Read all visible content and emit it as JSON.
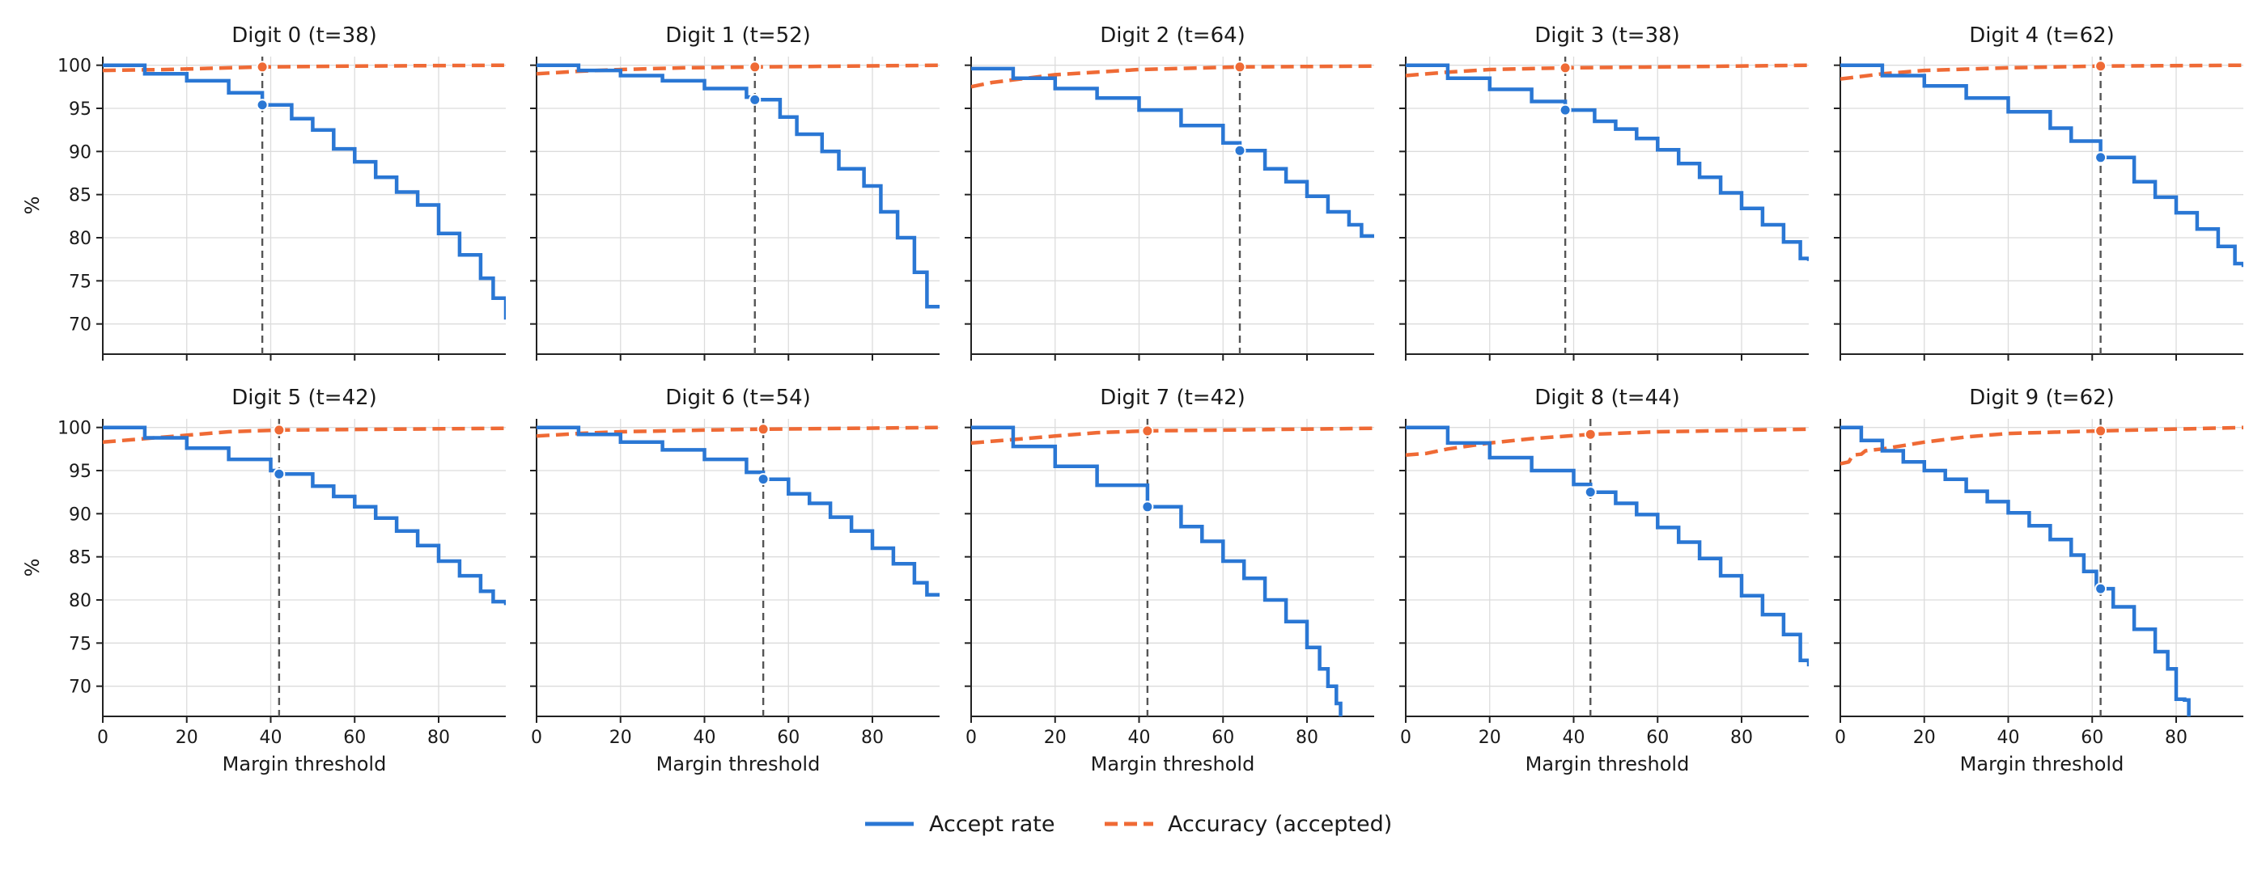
{
  "chart_data": {
    "type": "line",
    "layout": "2x5 small multiples",
    "xlabel": "Margin threshold",
    "ylabel": "%",
    "xlim": [
      0,
      96
    ],
    "ylim": [
      66.5,
      101
    ],
    "xticks": [
      0,
      20,
      40,
      60,
      80
    ],
    "yticks": [
      70,
      75,
      80,
      85,
      90,
      95,
      100
    ],
    "grid": true,
    "legend": {
      "placement": "bottom-center",
      "entries": [
        {
          "name": "Accept rate",
          "color": "#2a77d4",
          "style": "solid"
        },
        {
          "name": "Accuracy (accepted)",
          "color": "#ef6a35",
          "style": "dashed"
        }
      ]
    },
    "threshold_line_color": "#555555",
    "panels": [
      {
        "title": "Digit 0  (t=38)",
        "threshold": 38,
        "accept_marker": 95.4,
        "accuracy_marker": 99.8,
        "accept": [
          [
            0,
            100
          ],
          [
            10,
            99
          ],
          [
            20,
            98.2
          ],
          [
            30,
            96.8
          ],
          [
            38,
            95.4
          ],
          [
            45,
            93.8
          ],
          [
            50,
            92.5
          ],
          [
            55,
            90.3
          ],
          [
            60,
            88.8
          ],
          [
            65,
            87
          ],
          [
            70,
            85.3
          ],
          [
            75,
            83.8
          ],
          [
            80,
            80.5
          ],
          [
            85,
            78
          ],
          [
            90,
            75.3
          ],
          [
            93,
            73
          ],
          [
            96,
            70.5
          ]
        ],
        "accuracy": [
          [
            0,
            99.4
          ],
          [
            15,
            99.5
          ],
          [
            30,
            99.7
          ],
          [
            38,
            99.8
          ],
          [
            60,
            99.9
          ],
          [
            96,
            100
          ]
        ]
      },
      {
        "title": "Digit 1  (t=52)",
        "threshold": 52,
        "accept": [
          [
            0,
            100
          ],
          [
            10,
            99.4
          ],
          [
            20,
            98.8
          ],
          [
            30,
            98.2
          ],
          [
            40,
            97.3
          ],
          [
            50,
            96.3
          ],
          [
            52,
            96
          ],
          [
            58,
            94
          ],
          [
            62,
            92
          ],
          [
            68,
            90
          ],
          [
            72,
            88
          ],
          [
            78,
            86
          ],
          [
            82,
            83
          ],
          [
            86,
            80
          ],
          [
            90,
            76
          ],
          [
            93,
            72
          ],
          [
            96,
            71.8
          ]
        ],
        "accept_marker": 96,
        "accuracy_marker": 99.8,
        "accuracy": [
          [
            0,
            99
          ],
          [
            10,
            99.3
          ],
          [
            20,
            99.5
          ],
          [
            35,
            99.7
          ],
          [
            52,
            99.8
          ],
          [
            96,
            100
          ]
        ]
      },
      {
        "title": "Digit 2  (t=64)",
        "threshold": 64,
        "accept": [
          [
            0,
            99.6
          ],
          [
            10,
            98.5
          ],
          [
            20,
            97.3
          ],
          [
            30,
            96.2
          ],
          [
            40,
            94.8
          ],
          [
            50,
            93
          ],
          [
            60,
            91
          ],
          [
            64,
            90.1
          ],
          [
            70,
            88
          ],
          [
            75,
            86.5
          ],
          [
            80,
            84.8
          ],
          [
            85,
            83
          ],
          [
            90,
            81.5
          ],
          [
            93,
            80.2
          ],
          [
            96,
            80
          ]
        ],
        "accept_marker": 90.1,
        "accuracy_marker": 99.8,
        "accuracy": [
          [
            0,
            97.5
          ],
          [
            5,
            98
          ],
          [
            10,
            98.3
          ],
          [
            20,
            98.9
          ],
          [
            30,
            99.2
          ],
          [
            40,
            99.5
          ],
          [
            64,
            99.8
          ],
          [
            96,
            99.9
          ]
        ]
      },
      {
        "title": "Digit 3  (t=38)",
        "threshold": 38,
        "accept": [
          [
            0,
            100
          ],
          [
            10,
            98.5
          ],
          [
            20,
            97.2
          ],
          [
            30,
            95.8
          ],
          [
            38,
            94.8
          ],
          [
            45,
            93.5
          ],
          [
            50,
            92.6
          ],
          [
            55,
            91.5
          ],
          [
            60,
            90.2
          ],
          [
            65,
            88.6
          ],
          [
            70,
            87
          ],
          [
            75,
            85.2
          ],
          [
            80,
            83.4
          ],
          [
            85,
            81.5
          ],
          [
            90,
            79.5
          ],
          [
            94,
            77.6
          ],
          [
            96,
            77.3
          ]
        ],
        "accept_marker": 94.8,
        "accuracy_marker": 99.7,
        "accuracy": [
          [
            0,
            98.8
          ],
          [
            10,
            99.2
          ],
          [
            20,
            99.5
          ],
          [
            38,
            99.7
          ],
          [
            60,
            99.8
          ],
          [
            96,
            100
          ]
        ]
      },
      {
        "title": "Digit 4  (t=62)",
        "threshold": 62,
        "accept": [
          [
            0,
            100
          ],
          [
            10,
            98.8
          ],
          [
            20,
            97.6
          ],
          [
            30,
            96.2
          ],
          [
            40,
            94.6
          ],
          [
            50,
            92.7
          ],
          [
            55,
            91.2
          ],
          [
            62,
            89.3
          ],
          [
            70,
            86.5
          ],
          [
            75,
            84.7
          ],
          [
            80,
            82.9
          ],
          [
            85,
            81
          ],
          [
            90,
            79
          ],
          [
            94,
            77
          ],
          [
            96,
            76.6
          ]
        ],
        "accept_marker": 89.3,
        "accuracy_marker": 99.9,
        "accuracy": [
          [
            0,
            98.4
          ],
          [
            10,
            99
          ],
          [
            20,
            99.4
          ],
          [
            40,
            99.7
          ],
          [
            62,
            99.9
          ],
          [
            96,
            100
          ]
        ]
      },
      {
        "title": "Digit 5  (t=42)",
        "threshold": 42,
        "accept": [
          [
            0,
            100
          ],
          [
            10,
            98.8
          ],
          [
            20,
            97.6
          ],
          [
            30,
            96.3
          ],
          [
            40,
            95
          ],
          [
            42,
            94.6
          ],
          [
            50,
            93.2
          ],
          [
            55,
            92
          ],
          [
            60,
            90.8
          ],
          [
            65,
            89.5
          ],
          [
            70,
            88
          ],
          [
            75,
            86.3
          ],
          [
            80,
            84.5
          ],
          [
            85,
            82.8
          ],
          [
            90,
            81
          ],
          [
            93,
            79.8
          ],
          [
            96,
            79.4
          ]
        ],
        "accept_marker": 94.6,
        "accuracy_marker": 99.7,
        "accuracy": [
          [
            0,
            98.3
          ],
          [
            10,
            98.7
          ],
          [
            20,
            99.1
          ],
          [
            30,
            99.5
          ],
          [
            42,
            99.7
          ],
          [
            96,
            99.9
          ]
        ]
      },
      {
        "title": "Digit 6  (t=54)",
        "threshold": 54,
        "accept": [
          [
            0,
            100
          ],
          [
            10,
            99.2
          ],
          [
            20,
            98.3
          ],
          [
            30,
            97.4
          ],
          [
            40,
            96.3
          ],
          [
            50,
            94.8
          ],
          [
            54,
            94
          ],
          [
            60,
            92.3
          ],
          [
            65,
            91.2
          ],
          [
            70,
            89.6
          ],
          [
            75,
            88
          ],
          [
            80,
            86
          ],
          [
            85,
            84.2
          ],
          [
            90,
            82
          ],
          [
            93,
            80.6
          ],
          [
            96,
            80.4
          ]
        ],
        "accept_marker": 94,
        "accuracy_marker": 99.8,
        "accuracy": [
          [
            0,
            99
          ],
          [
            10,
            99.3
          ],
          [
            20,
            99.5
          ],
          [
            40,
            99.7
          ],
          [
            54,
            99.8
          ],
          [
            96,
            100
          ]
        ]
      },
      {
        "title": "Digit 7  (t=42)",
        "threshold": 42,
        "accept": [
          [
            0,
            100
          ],
          [
            10,
            97.8
          ],
          [
            20,
            95.5
          ],
          [
            30,
            93.3
          ],
          [
            42,
            90.8
          ],
          [
            50,
            88.5
          ],
          [
            55,
            86.8
          ],
          [
            60,
            84.5
          ],
          [
            65,
            82.5
          ],
          [
            70,
            80
          ],
          [
            75,
            77.5
          ],
          [
            80,
            74.5
          ],
          [
            83,
            72
          ],
          [
            85,
            70
          ],
          [
            87,
            68
          ],
          [
            88,
            66.5
          ]
        ],
        "accept_marker": 90.8,
        "accuracy_marker": 99.6,
        "accuracy": [
          [
            0,
            98.2
          ],
          [
            10,
            98.6
          ],
          [
            20,
            99
          ],
          [
            30,
            99.4
          ],
          [
            42,
            99.6
          ],
          [
            60,
            99.7
          ],
          [
            96,
            99.9
          ]
        ]
      },
      {
        "title": "Digit 8  (t=44)",
        "threshold": 44,
        "accept": [
          [
            0,
            100
          ],
          [
            10,
            98.2
          ],
          [
            20,
            96.5
          ],
          [
            30,
            95
          ],
          [
            40,
            93.4
          ],
          [
            44,
            92.5
          ],
          [
            50,
            91.2
          ],
          [
            55,
            89.9
          ],
          [
            60,
            88.4
          ],
          [
            65,
            86.7
          ],
          [
            70,
            84.8
          ],
          [
            75,
            82.8
          ],
          [
            80,
            80.5
          ],
          [
            85,
            78.3
          ],
          [
            90,
            76
          ],
          [
            94,
            73
          ],
          [
            96,
            72.3
          ]
        ],
        "accept_marker": 92.5,
        "accuracy_marker": 99.2,
        "accuracy": [
          [
            0,
            96.8
          ],
          [
            5,
            97
          ],
          [
            10,
            97.5
          ],
          [
            20,
            98.2
          ],
          [
            30,
            98.7
          ],
          [
            44,
            99.2
          ],
          [
            60,
            99.5
          ],
          [
            96,
            99.8
          ]
        ]
      },
      {
        "title": "Digit 9  (t=62)",
        "threshold": 62,
        "accept": [
          [
            0,
            100
          ],
          [
            5,
            98.5
          ],
          [
            10,
            97.3
          ],
          [
            15,
            96
          ],
          [
            20,
            95
          ],
          [
            25,
            94
          ],
          [
            30,
            92.6
          ],
          [
            35,
            91.4
          ],
          [
            40,
            90.1
          ],
          [
            45,
            88.6
          ],
          [
            50,
            87
          ],
          [
            55,
            85.2
          ],
          [
            58,
            83.3
          ],
          [
            61,
            81.4
          ],
          [
            62,
            81.3
          ],
          [
            65,
            79.2
          ],
          [
            70,
            76.6
          ],
          [
            75,
            74
          ],
          [
            78,
            72
          ],
          [
            80,
            68.5
          ],
          [
            82,
            68.4
          ],
          [
            83,
            66.5
          ]
        ],
        "accept_marker": 81.3,
        "accuracy_marker": 99.6,
        "accuracy": [
          [
            0,
            95.8
          ],
          [
            2,
            96
          ],
          [
            3,
            96.8
          ],
          [
            5,
            96.9
          ],
          [
            6,
            97.3
          ],
          [
            10,
            97.5
          ],
          [
            20,
            98.3
          ],
          [
            30,
            98.9
          ],
          [
            40,
            99.3
          ],
          [
            62,
            99.6
          ],
          [
            96,
            100
          ]
        ]
      }
    ]
  }
}
